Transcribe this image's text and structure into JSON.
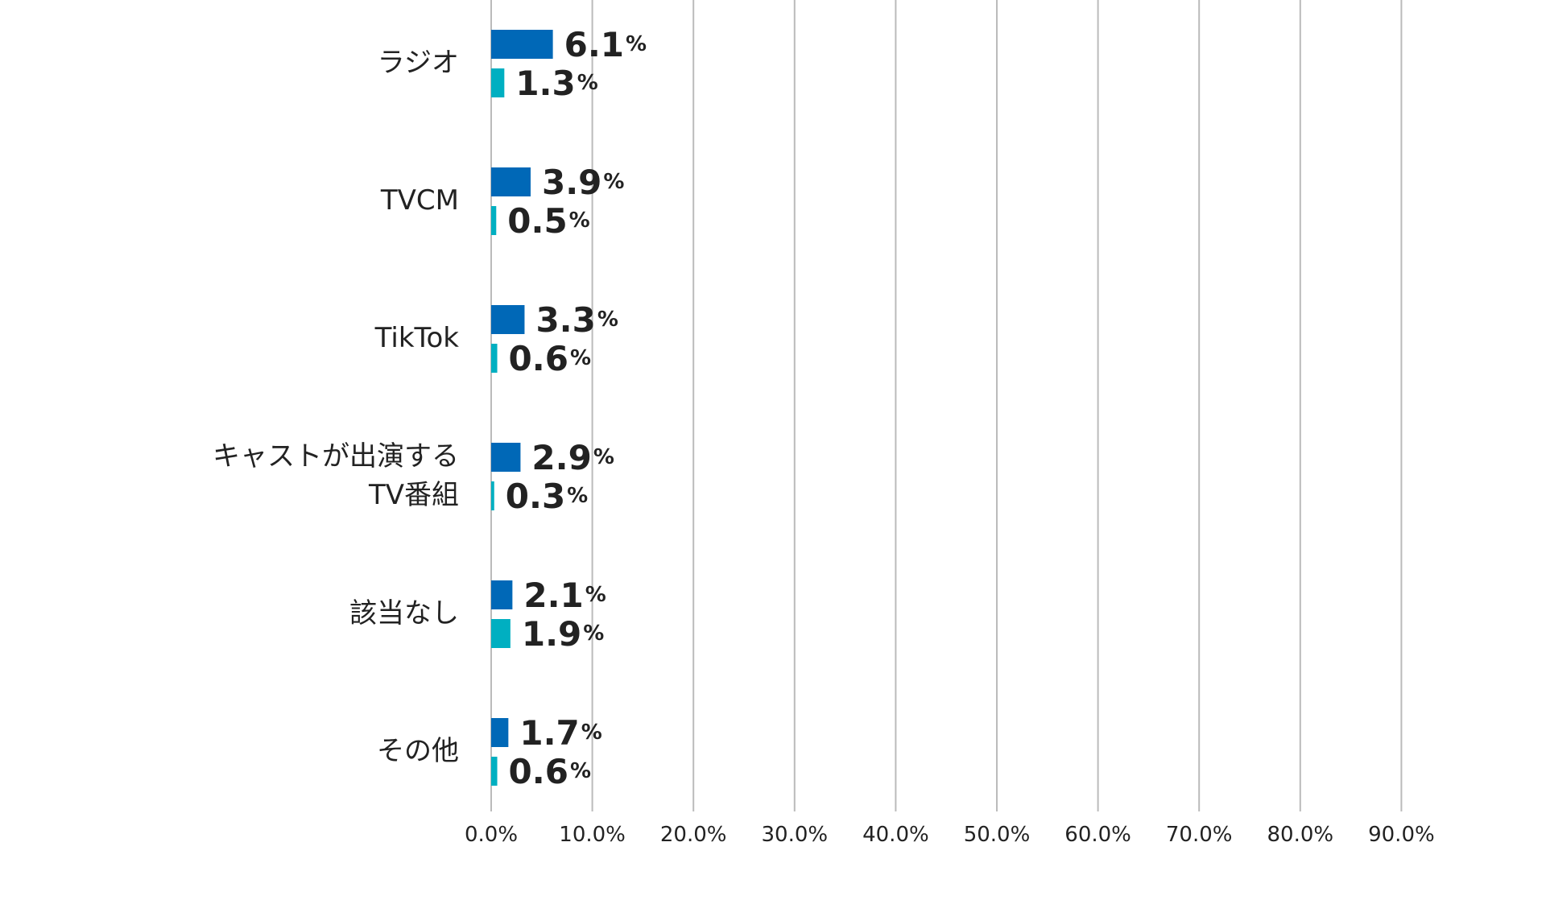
{
  "chart_data": {
    "type": "bar",
    "orientation": "horizontal",
    "categories": [
      [
        "ラジオ"
      ],
      [
        "TVCM"
      ],
      [
        "TikTok"
      ],
      [
        "キャストが出演する",
        "TV番組"
      ],
      [
        "該当なし"
      ],
      [
        "その他"
      ]
    ],
    "series": [
      {
        "values": [
          6.1,
          3.9,
          3.3,
          2.9,
          2.1,
          1.7
        ],
        "labels": [
          "6.1",
          "3.9",
          "3.3",
          "2.9",
          "2.1",
          "1.7"
        ],
        "color": "#0068b7"
      },
      {
        "values": [
          1.3,
          0.5,
          0.6,
          0.3,
          1.9,
          0.6
        ],
        "labels": [
          "1.3",
          "0.5",
          "0.6",
          "0.3",
          "1.9",
          "0.6"
        ],
        "color": "#00afc1"
      }
    ],
    "value_unit": "%",
    "xlim": [
      0,
      90
    ],
    "xticks": [
      "0.0%",
      "10.0%",
      "20.0%",
      "30.0%",
      "40.0%",
      "50.0%",
      "60.0%",
      "70.0%",
      "80.0%",
      "90.0%"
    ],
    "gridlines": "vertical",
    "grid_color": "#bbbbbb",
    "legend": "none",
    "title": "",
    "xlabel": "",
    "ylabel": ""
  }
}
